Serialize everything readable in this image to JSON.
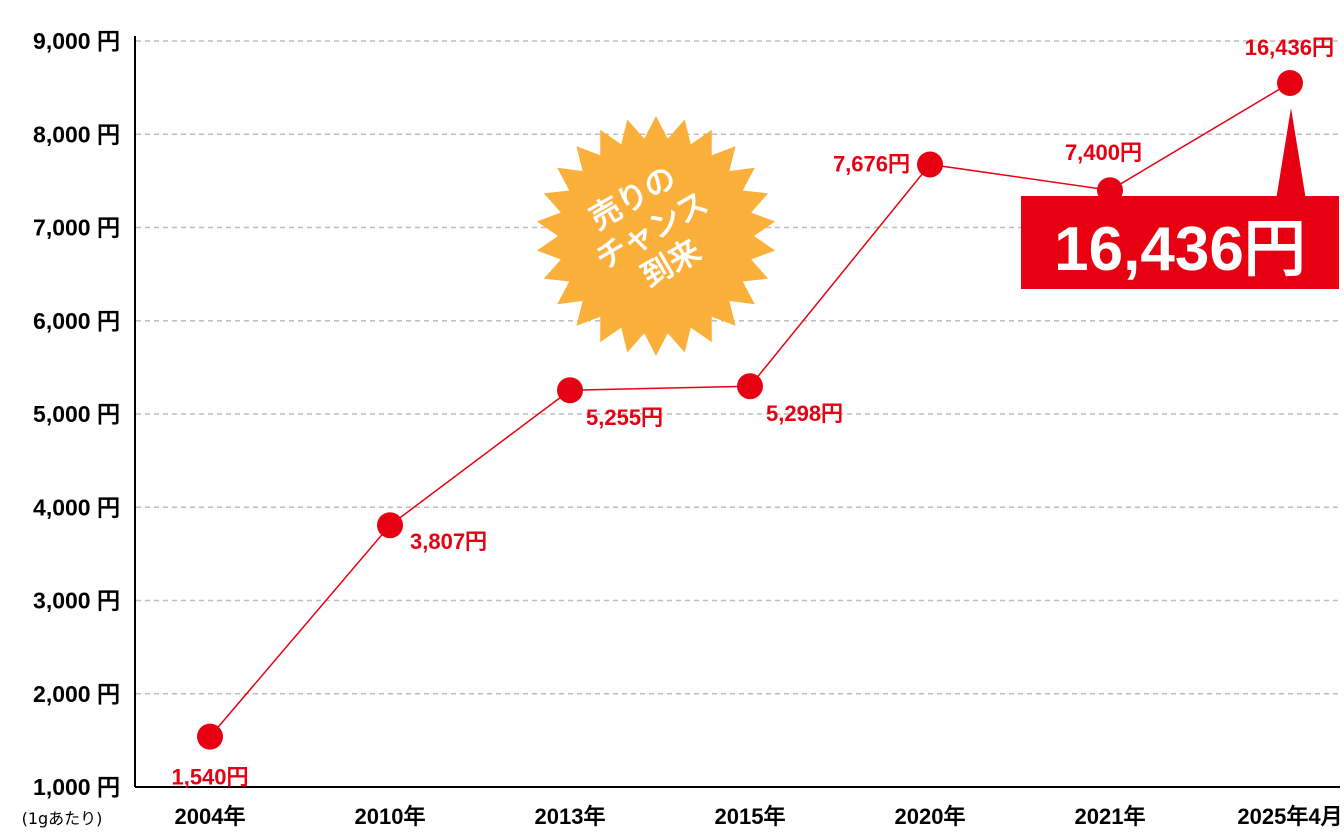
{
  "chart_data": {
    "type": "line",
    "categories": [
      "2004年",
      "2010年",
      "2013年",
      "2015年",
      "2020年",
      "2021年",
      "2025年4月"
    ],
    "series": [
      {
        "values": [
          1540,
          3807,
          5255,
          5298,
          7676,
          7400,
          16436
        ],
        "labels": [
          "1,540円",
          "3,807円",
          "5,255円",
          "5,298円",
          "7,676円",
          "7,400円",
          "16,436円"
        ]
      }
    ],
    "y_ticks": [
      "1,000 円",
      "2,000 円",
      "3,000 円",
      "4,000 円",
      "5,000 円",
      "6,000 円",
      "7,000 円",
      "8,000 円",
      "9,000 円"
    ],
    "unit_note": "(1gあたり)",
    "ylim": [
      1000,
      9000
    ],
    "grid": true,
    "colors": {
      "line": "#e60012",
      "marker": "#e60012",
      "label": "#e60012",
      "badge": "#fbb03b",
      "callout_bg": "#e60012"
    },
    "badge": {
      "lines": [
        "売りの",
        "チャンス",
        "到来"
      ]
    },
    "callout": {
      "text": "16,436円"
    }
  }
}
